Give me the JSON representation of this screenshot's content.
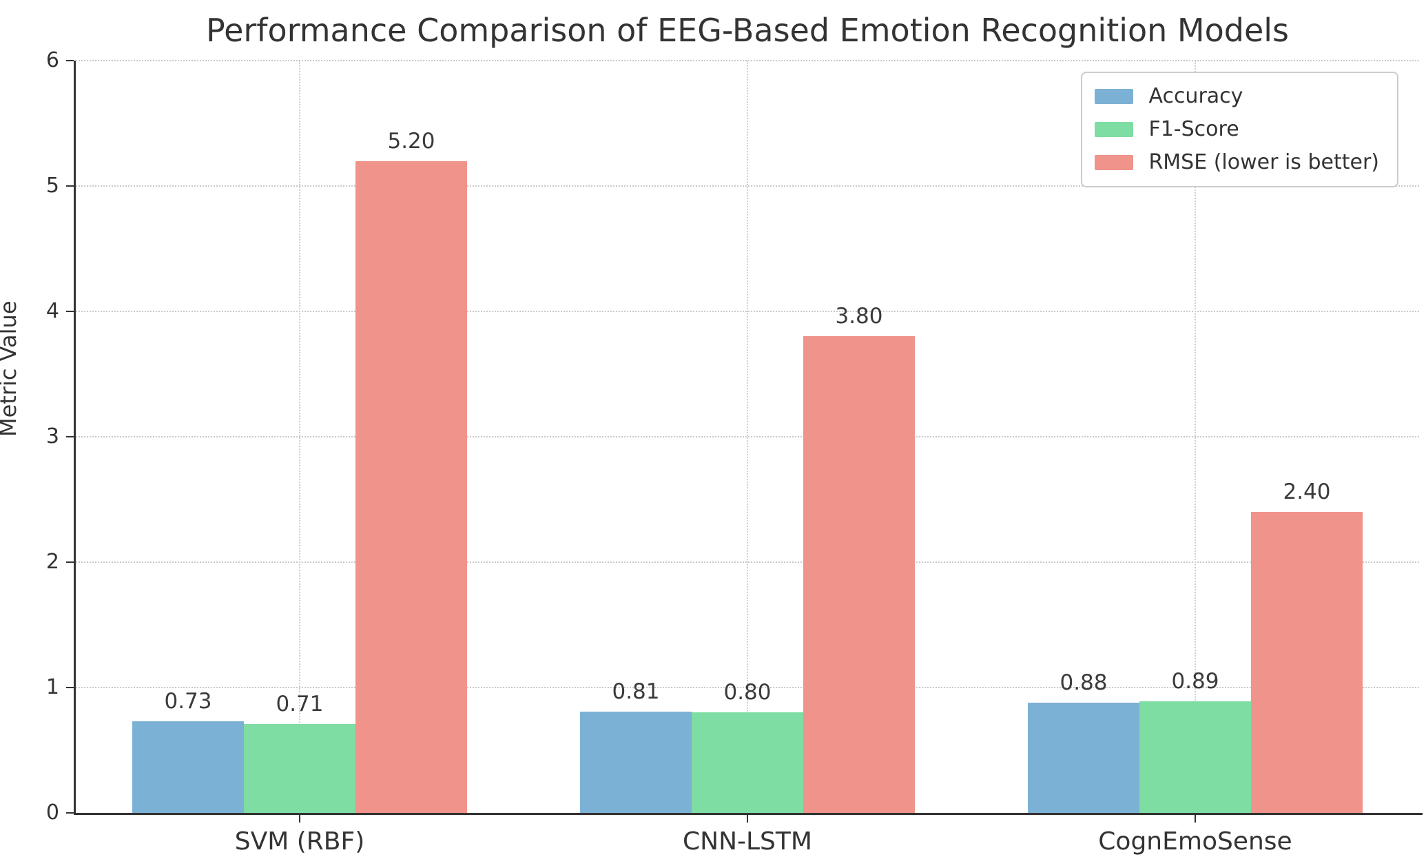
{
  "chart_data": {
    "type": "bar",
    "title": "Performance Comparison of EEG-Based Emotion Recognition Models",
    "xlabel": "",
    "ylabel": "Metric Value",
    "ylim": [
      0,
      6
    ],
    "yticks": [
      0,
      1,
      2,
      3,
      4,
      5,
      6
    ],
    "grid": "dotted horizontal gridlines at integer ticks and dotted vertical gridlines at category centers",
    "legend_position": "upper right",
    "background_color": "#ffffff",
    "axis_color": "#333333",
    "gridline_color": "#c9c9c9",
    "categories": [
      "SVM (RBF)",
      "CNN-LSTM",
      "CognEmoSense"
    ],
    "series": [
      {
        "name": "Accuracy",
        "color": "#7cb1d6",
        "values": [
          0.73,
          0.81,
          0.88
        ],
        "labels": [
          "0.73",
          "0.81",
          "0.88"
        ]
      },
      {
        "name": "F1-Score",
        "color": "#7edda2",
        "values": [
          0.71,
          0.8,
          0.89
        ],
        "labels": [
          "0.71",
          "0.80",
          "0.89"
        ]
      },
      {
        "name": "RMSE (lower is better)",
        "color": "#f0938a",
        "values": [
          5.2,
          3.8,
          2.4
        ],
        "labels": [
          "5.20",
          "3.80",
          "2.40"
        ]
      }
    ]
  }
}
